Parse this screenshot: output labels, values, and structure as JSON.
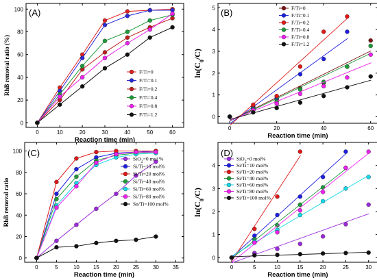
{
  "chart_data": [
    {
      "type": "line",
      "panel_label": "(A)",
      "xlabel": "Reaction time (min)",
      "ylabel": "RhB removal ratio (%)",
      "xlim": [
        -5,
        65
      ],
      "ylim": [
        -4,
        105
      ],
      "xticks": [
        0,
        10,
        20,
        30,
        40,
        50,
        60
      ],
      "yticks": [
        0,
        20,
        40,
        60,
        80,
        100
      ],
      "x": [
        0,
        10,
        20,
        30,
        40,
        50,
        60
      ],
      "legend_position": "bottom-right",
      "series": [
        {
          "name": "F/Ti=0",
          "color": "#e02020",
          "values": [
            0,
            31,
            60,
            90,
            98,
            99,
            100
          ]
        },
        {
          "name": "F/Ti=0.1",
          "color": "#2a2ad8",
          "values": [
            0,
            28,
            57,
            86,
            94,
            99,
            99
          ]
        },
        {
          "name": "F/Ti=0.2",
          "color": "#c01e1e",
          "values": [
            0,
            20,
            47,
            62,
            75,
            84,
            92
          ]
        },
        {
          "name": "F/Ti=0.4",
          "color": "#1f9a3a",
          "values": [
            0,
            25,
            50,
            72,
            80,
            90,
            95
          ]
        },
        {
          "name": "F/Ti=0.8",
          "color": "#ee22ee",
          "values": [
            0,
            23,
            40,
            57,
            70,
            82,
            96
          ]
        },
        {
          "name": "F/Ti=1.2",
          "color": "#111111",
          "values": [
            0,
            16,
            32,
            48,
            60,
            75,
            84
          ]
        }
      ]
    },
    {
      "type": "scatter",
      "panel_label": "(B)",
      "xlabel": "Reaction time (min)",
      "ylabel": "ln(C0/C)",
      "xlim": [
        -5,
        63
      ],
      "ylim": [
        -0.3,
        5.2
      ],
      "xticks": [
        0,
        20,
        40,
        60
      ],
      "yticks": [
        0,
        1,
        2,
        3,
        4,
        5
      ],
      "x": [
        0,
        10,
        20,
        30,
        40,
        50,
        60
      ],
      "legend_position": "top-left",
      "series": [
        {
          "name": "F/Ti=0",
          "color": "#7a1414",
          "values": [
            0,
            0.45,
            0.8,
            1.3,
            1.55,
            2.3,
            3.5
          ]
        },
        {
          "name": "F/Ti=0.1",
          "color": "#1f1fe0",
          "values": [
            0,
            0.4,
            0.85,
            1.95,
            2.65,
            3.9,
            null
          ]
        },
        {
          "name": "F/Ti=0.2",
          "color": "#e01818",
          "values": [
            0,
            0.55,
            0.95,
            2.3,
            3.9,
            4.6,
            null
          ]
        },
        {
          "name": "F/Ti=0.4",
          "color": "#1f9a3a",
          "values": [
            0,
            0.35,
            0.7,
            1.25,
            1.6,
            2.3,
            3.25
          ]
        },
        {
          "name": "F/Ti=0.8",
          "color": "#ee22ee",
          "values": [
            0,
            0.3,
            0.6,
            1.05,
            1.4,
            1.8,
            2.85
          ]
        },
        {
          "name": "F/Ti=1.2",
          "color": "#111111",
          "values": [
            0,
            0.2,
            0.4,
            0.65,
            0.95,
            1.35,
            1.85
          ]
        }
      ]
    },
    {
      "type": "line",
      "panel_label": "(C)",
      "xlabel": "Reaction time (min)",
      "ylabel": "RhB removal ratio",
      "xlim": [
        -3,
        37
      ],
      "ylim": [
        -4,
        108
      ],
      "xticks": [
        0,
        5,
        10,
        15,
        20,
        25,
        30,
        35
      ],
      "yticks": [
        0,
        20,
        40,
        60,
        80,
        100
      ],
      "x": [
        0,
        5,
        10,
        15,
        20,
        25,
        30
      ],
      "legend_position": "right",
      "series": [
        {
          "name": "SiO2=0 mol %",
          "color": "#9c2bdc",
          "values": [
            0,
            16,
            31,
            46,
            60,
            77,
            90
          ]
        },
        {
          "name": "Si/Ti=10 mol%",
          "color": "#1f1fe0",
          "values": [
            0,
            60,
            83,
            94,
            98,
            99,
            100
          ]
        },
        {
          "name": "Si/Ti=20 mol%",
          "color": "#e01818",
          "values": [
            0,
            71,
            93,
            99,
            100,
            100,
            100
          ]
        },
        {
          "name": "Si/Ti=40 mol%",
          "color": "#1f9a3a",
          "values": [
            0,
            55,
            76,
            91,
            96,
            98,
            99
          ]
        },
        {
          "name": "Si/Ti=60 mol%",
          "color": "#16d8e8",
          "values": [
            0,
            49,
            70,
            87,
            94,
            97,
            98
          ]
        },
        {
          "name": "Si/Ti=80 mol%",
          "color": "#ee22ee",
          "values": [
            0,
            47,
            67,
            89,
            97,
            99,
            99
          ]
        },
        {
          "name": "Sn/Ti=100 mol%",
          "color": "#111111",
          "values": [
            0,
            10,
            11,
            14,
            16,
            17,
            20
          ]
        }
      ]
    },
    {
      "type": "scatter",
      "panel_label": "(D)",
      "xlabel": "Reaction time (min)",
      "ylabel": "ln(C0/C)",
      "xlim": [
        -3,
        32
      ],
      "ylim": [
        -0.2,
        5.0
      ],
      "xticks": [
        0,
        5,
        10,
        15,
        20,
        25,
        30
      ],
      "yticks": [
        0,
        1,
        2,
        3,
        4
      ],
      "x": [
        0,
        5,
        10,
        15,
        20,
        25,
        30
      ],
      "legend_position": "top-left",
      "series": [
        {
          "name": "SiO2=0 mol%",
          "color": "#9c2bdc",
          "values": [
            0,
            0.2,
            0.38,
            0.6,
            0.92,
            1.45,
            2.3
          ]
        },
        {
          "name": "Si/Ti=10 mol%",
          "color": "#1f1fe0",
          "values": [
            0,
            0.95,
            1.85,
            2.65,
            3.5,
            4.6,
            null
          ]
        },
        {
          "name": "Si/Ti=20 mol%",
          "color": "#e01818",
          "values": [
            0,
            1.25,
            2.65,
            4.6,
            null,
            null,
            null
          ]
        },
        {
          "name": "Si/Ti=40 mol%",
          "color": "#1f9a3a",
          "values": [
            0,
            0.8,
            1.4,
            2.3,
            3.05,
            3.9,
            null
          ]
        },
        {
          "name": "Si/Ti=60 mol%",
          "color": "#16d8e8",
          "values": [
            0,
            0.7,
            1.2,
            1.85,
            2.45,
            3.0,
            3.5
          ]
        },
        {
          "name": "Si/Ti=80 mol%",
          "color": "#ee22ee",
          "values": [
            0,
            0.65,
            1.1,
            2.05,
            2.85,
            3.9,
            4.6
          ]
        },
        {
          "name": "Si/Ti=100 mol%",
          "color": "#111111",
          "values": [
            0,
            0.1,
            0.12,
            0.15,
            0.18,
            0.2,
            0.22
          ]
        }
      ]
    }
  ]
}
